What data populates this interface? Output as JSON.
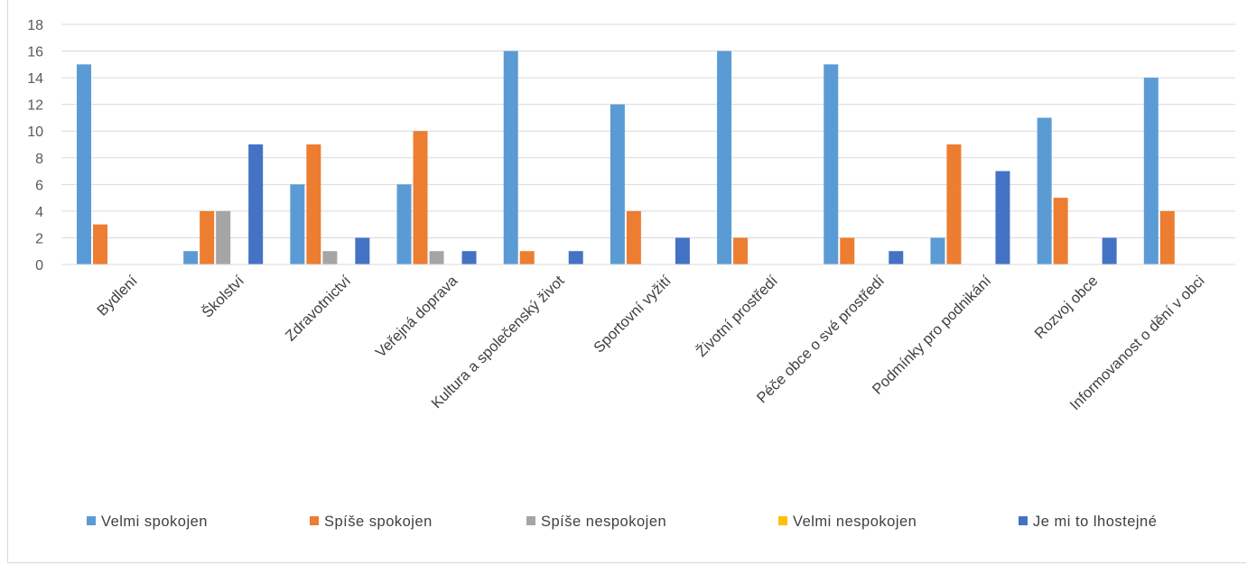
{
  "chart_data": {
    "type": "bar",
    "categories": [
      "Bydlení",
      "Školství",
      "Zdravotnictví",
      "Veřejná doprava",
      "Kultura a společenský život",
      "Sportovní vyžití",
      "Životní prostředí",
      "Péče obce o své prostředí",
      "Podmínky pro podnikání",
      "Rozvoj obce",
      "Informovanost o dění v obci"
    ],
    "series": [
      {
        "name": "Velmi spokojen",
        "color": "#5b9bd5",
        "values": [
          15,
          1,
          6,
          6,
          16,
          12,
          16,
          15,
          2,
          11,
          14
        ]
      },
      {
        "name": "Spíše spokojen",
        "color": "#ed7d31",
        "values": [
          3,
          4,
          9,
          10,
          1,
          4,
          2,
          2,
          9,
          5,
          4
        ]
      },
      {
        "name": "Spíše nespokojen",
        "color": "#a5a5a5",
        "values": [
          0,
          4,
          1,
          1,
          0,
          0,
          0,
          0,
          0,
          0,
          0
        ]
      },
      {
        "name": "Velmi nespokojen",
        "color": "#ffc000",
        "values": [
          0,
          0,
          0,
          0,
          0,
          0,
          0,
          0,
          0,
          0,
          0
        ]
      },
      {
        "name": "Je mi to lhostejné",
        "color": "#4472c4",
        "values": [
          0,
          9,
          2,
          1,
          1,
          2,
          0,
          1,
          7,
          2,
          0
        ]
      }
    ],
    "ylim": [
      0,
      18
    ],
    "yticks": [
      "0",
      "2",
      "4",
      "6",
      "8",
      "10",
      "12",
      "14",
      "16",
      "18"
    ],
    "grid": true,
    "legend": "bottom",
    "title": "",
    "xlabel": "",
    "ylabel": ""
  }
}
